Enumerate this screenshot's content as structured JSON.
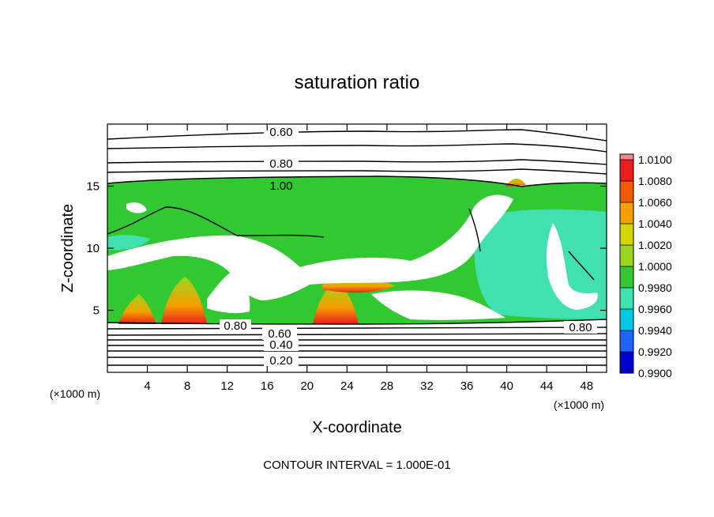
{
  "chart_data": {
    "type": "heatmap",
    "title": "saturation ratio",
    "xlabel": "X-coordinate",
    "ylabel": "Z-coordinate",
    "x_unit": "(×1000 m)",
    "y_unit": "(×1000 m)",
    "xlim": [
      0,
      50
    ],
    "ylim": [
      0,
      20
    ],
    "x_ticks": [
      4,
      8,
      12,
      16,
      20,
      24,
      28,
      32,
      36,
      40,
      44,
      48
    ],
    "y_ticks": [
      5,
      10,
      15
    ],
    "colorbar": {
      "levels": [
        "1.0100",
        "1.0080",
        "1.0060",
        "1.0040",
        "1.0020",
        "1.0000",
        "0.9980",
        "0.9960",
        "0.9940",
        "0.9920",
        "0.9900"
      ],
      "colors": [
        "#f08a8a",
        "#e81e1e",
        "#f05a00",
        "#f5a000",
        "#d6d600",
        "#9ad61e",
        "#32c832",
        "#40e0b0",
        "#00c8e6",
        "#1e64ff",
        "#0000c8",
        "#7800a0"
      ]
    },
    "contour_labels": [
      "0.60",
      "0.80",
      "1.00",
      "0.80",
      "0.60",
      "0.40",
      "0.20",
      "0.80"
    ],
    "footer": "CONTOUR INTERVAL = 1.000E-01"
  }
}
